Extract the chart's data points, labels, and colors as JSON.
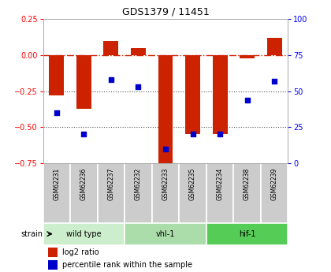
{
  "title": "GDS1379 / 11451",
  "samples": [
    "GSM62231",
    "GSM62236",
    "GSM62237",
    "GSM62232",
    "GSM62233",
    "GSM62235",
    "GSM62234",
    "GSM62238",
    "GSM62239"
  ],
  "log2_ratio": [
    -0.28,
    -0.37,
    0.1,
    0.05,
    -0.8,
    -0.55,
    -0.55,
    -0.02,
    0.12
  ],
  "pct_rank": [
    35,
    20,
    58,
    53,
    10,
    20,
    20,
    44,
    57
  ],
  "ylim_left": [
    -0.75,
    0.25
  ],
  "ylim_right": [
    0,
    100
  ],
  "yticks_left": [
    -0.75,
    -0.5,
    -0.25,
    0,
    0.25
  ],
  "yticks_right": [
    0,
    25,
    50,
    75,
    100
  ],
  "hlines": [
    -0.5,
    -0.25
  ],
  "groups": [
    {
      "label": "wild type",
      "start": 0,
      "end": 3,
      "color": "#cceecc"
    },
    {
      "label": "vhl-1",
      "start": 3,
      "end": 6,
      "color": "#aaddaa"
    },
    {
      "label": "hif-1",
      "start": 6,
      "end": 9,
      "color": "#55cc55"
    }
  ],
  "bar_color": "#cc2200",
  "dot_color": "#0000cc",
  "dot_size": 25,
  "bar_width": 0.55,
  "zero_line_color": "#cc2200",
  "hline_color": "#555555",
  "label_strain": "strain",
  "legend_items": [
    "log2 ratio",
    "percentile rank within the sample"
  ],
  "sample_box_color": "#cccccc",
  "fig_width": 4.2,
  "fig_height": 3.45,
  "dpi": 100
}
